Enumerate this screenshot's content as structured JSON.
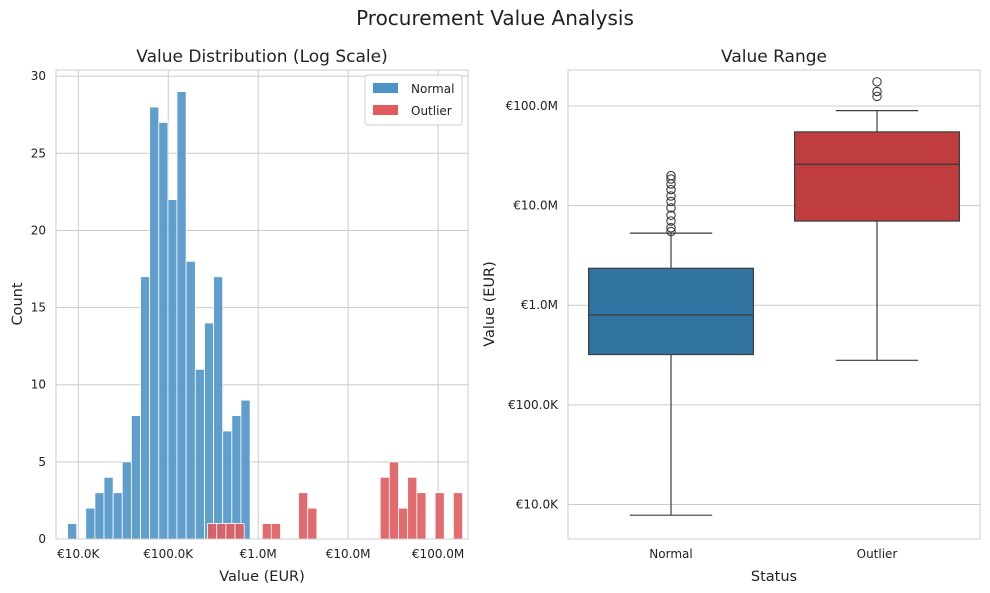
{
  "figure": {
    "title": "Procurement Value Analysis"
  },
  "chart_data": [
    {
      "type": "histogram",
      "title": "Value Distribution (Log Scale)",
      "xlabel": "Value (EUR)",
      "ylabel": "Count",
      "x_scale": "log",
      "xlim": [
        5650,
        215000000
      ],
      "ylim": [
        0,
        30.4
      ],
      "x_ticks": [
        10000,
        100000,
        1000000,
        10000000,
        100000000
      ],
      "x_tick_labels": [
        "€10.0K",
        "€100.0K",
        "€1.0M",
        "€10.0M",
        "€100.0M"
      ],
      "y_ticks": [
        0,
        5,
        10,
        15,
        20,
        25,
        30
      ],
      "y_tick_labels": [
        "0",
        "5",
        "10",
        "15",
        "20",
        "25",
        "30"
      ],
      "grid": true,
      "legend_position": "top-right",
      "series": [
        {
          "name": "Normal",
          "color": "#4f94c7",
          "bins": [
            {
              "x0": 7600,
              "x1": 9600,
              "count": 1
            },
            {
              "x0": 12100,
              "x1": 15300,
              "count": 2
            },
            {
              "x0": 15300,
              "x1": 19300,
              "count": 3
            },
            {
              "x0": 19300,
              "x1": 24400,
              "count": 4
            },
            {
              "x0": 24400,
              "x1": 30800,
              "count": 3
            },
            {
              "x0": 30800,
              "x1": 38900,
              "count": 5
            },
            {
              "x0": 38900,
              "x1": 49200,
              "count": 8
            },
            {
              "x0": 49200,
              "x1": 62100,
              "count": 17
            },
            {
              "x0": 62100,
              "x1": 78500,
              "count": 28
            },
            {
              "x0": 78500,
              "x1": 99200,
              "count": 27
            },
            {
              "x0": 99200,
              "x1": 125000,
              "count": 22
            },
            {
              "x0": 125000,
              "x1": 158000,
              "count": 29
            },
            {
              "x0": 158000,
              "x1": 200000,
              "count": 18
            },
            {
              "x0": 200000,
              "x1": 253000,
              "count": 11
            },
            {
              "x0": 253000,
              "x1": 319000,
              "count": 14
            },
            {
              "x0": 319000,
              "x1": 403000,
              "count": 17
            },
            {
              "x0": 403000,
              "x1": 509000,
              "count": 7
            },
            {
              "x0": 509000,
              "x1": 643000,
              "count": 8
            },
            {
              "x0": 643000,
              "x1": 813000,
              "count": 9
            }
          ]
        },
        {
          "name": "Outlier",
          "color": "#e05a5e",
          "bins": [
            {
              "x0": 274000,
              "x1": 346000,
              "count": 1
            },
            {
              "x0": 346000,
              "x1": 437000,
              "count": 1
            },
            {
              "x0": 437000,
              "x1": 552000,
              "count": 1
            },
            {
              "x0": 552000,
              "x1": 698000,
              "count": 1
            },
            {
              "x0": 1110000,
              "x1": 1400000,
              "count": 1
            },
            {
              "x0": 1400000,
              "x1": 1770000,
              "count": 1
            },
            {
              "x0": 2810000,
              "x1": 3550000,
              "count": 3
            },
            {
              "x0": 3550000,
              "x1": 4490000,
              "count": 2
            },
            {
              "x0": 22700000,
              "x1": 28700000,
              "count": 4
            },
            {
              "x0": 28700000,
              "x1": 36300000,
              "count": 5
            },
            {
              "x0": 36300000,
              "x1": 45900000,
              "count": 2
            },
            {
              "x0": 45900000,
              "x1": 58000000,
              "count": 4
            },
            {
              "x0": 58000000,
              "x1": 73300000,
              "count": 3
            },
            {
              "x0": 92600000,
              "x1": 117000000,
              "count": 3
            },
            {
              "x0": 148000000,
              "x1": 187000000,
              "count": 3
            }
          ]
        }
      ]
    },
    {
      "type": "box",
      "title": "Value Range",
      "xlabel": "Status",
      "ylabel": "Value (EUR)",
      "y_scale": "log",
      "ylim": [
        4500,
        230000000
      ],
      "y_ticks": [
        10000,
        100000,
        1000000,
        10000000,
        100000000
      ],
      "y_tick_labels": [
        "€10.0K",
        "€100.0K",
        "€1.0M",
        "€10.0M",
        "€100.0M"
      ],
      "categories": [
        "Normal",
        "Outlier"
      ],
      "grid": true,
      "boxes": [
        {
          "category": "Normal",
          "color": "#3274a1",
          "whisker_low": 7800,
          "q1": 320000,
          "median": 800000,
          "q3": 2350000,
          "whisker_high": 5300000,
          "outliers": [
            5500000,
            6000000,
            7000000,
            8000000,
            9500000,
            11000000,
            12500000,
            14500000,
            16500000,
            18500000,
            20000000
          ]
        },
        {
          "category": "Outlier",
          "color": "#c03d3e",
          "whisker_low": 280000,
          "q1": 7000000,
          "median": 26000000,
          "q3": 55000000,
          "whisker_high": 90000000,
          "outliers": [
            125000000,
            140000000,
            175000000
          ]
        }
      ]
    }
  ]
}
